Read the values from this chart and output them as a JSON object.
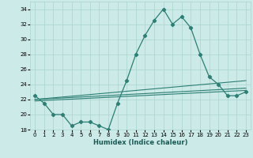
{
  "xlabel": "Humidex (Indice chaleur)",
  "bg_color": "#cceae7",
  "grid_color": "#aad4d0",
  "line_color": "#2d7f75",
  "xlim": [
    -0.5,
    23.5
  ],
  "ylim": [
    18,
    35
  ],
  "xticks": [
    0,
    1,
    2,
    3,
    4,
    5,
    6,
    7,
    8,
    9,
    10,
    11,
    12,
    13,
    14,
    15,
    16,
    17,
    18,
    19,
    20,
    21,
    22,
    23
  ],
  "yticks": [
    18,
    20,
    22,
    24,
    26,
    28,
    30,
    32,
    34
  ],
  "main_line_x": [
    0,
    1,
    2,
    3,
    4,
    5,
    6,
    7,
    8,
    9,
    10,
    11,
    12,
    13,
    14,
    15,
    16,
    17,
    18,
    19,
    20,
    21,
    22,
    23
  ],
  "main_line_y": [
    22.5,
    21.5,
    20,
    20,
    18.5,
    19,
    19,
    18.5,
    18,
    21.5,
    24.5,
    28,
    30.5,
    32.5,
    34,
    32,
    33,
    31.5,
    28,
    25,
    24,
    22.5,
    22.5,
    23
  ],
  "trend1_x": [
    0,
    23
  ],
  "trend1_y": [
    22.0,
    24.5
  ],
  "trend2_x": [
    0,
    23
  ],
  "trend2_y": [
    22.0,
    23.5
  ],
  "trend3_x": [
    0,
    23
  ],
  "trend3_y": [
    21.8,
    23.2
  ]
}
